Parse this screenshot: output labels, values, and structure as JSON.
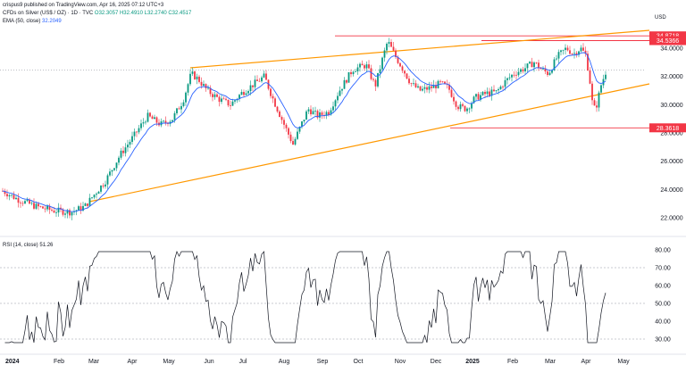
{
  "header": {
    "publisher": "crispus9 published on TradingView.com, Apr 16, 2025 07:12 UTC+3"
  },
  "legend": {
    "instrument": "CFDs on Silver (US$ / OZ) · 1D · TVC",
    "ohlc": "O32.3057 H32.4910 L32.2740 C32.4517",
    "ema_label": "EMA (50, close)",
    "ema_value": "32.2049",
    "rsi_label": "RSI (14, close)",
    "rsi_value": "51.26"
  },
  "price_axis": {
    "currency": "USD",
    "ticks": [
      "34.0000",
      "32.0000",
      "30.0000",
      "28.0000",
      "26.0000",
      "24.0000",
      "22.0000"
    ],
    "badges": [
      {
        "label": "34.8718",
        "color": "#f23645"
      },
      {
        "label": "34.5366",
        "color": "#f23645"
      },
      {
        "label": "28.3618",
        "color": "#f23645"
      }
    ]
  },
  "rsi_axis": {
    "ticks": [
      "80.00",
      "70.00",
      "60.00",
      "50.00",
      "40.00",
      "30.00"
    ]
  },
  "time_axis": {
    "labels": [
      "2024",
      "Feb",
      "Mar",
      "Apr",
      "May",
      "Jun",
      "Jul",
      "Aug",
      "Sep",
      "Oct",
      "Nov",
      "Dec",
      "2025",
      "Feb",
      "Mar",
      "Apr",
      "May"
    ]
  },
  "colors": {
    "up": "#089981",
    "down": "#f23645",
    "ema": "#2962ff",
    "trendline": "#ff9800",
    "level": "#f23645",
    "rsi": "#131722"
  }
}
